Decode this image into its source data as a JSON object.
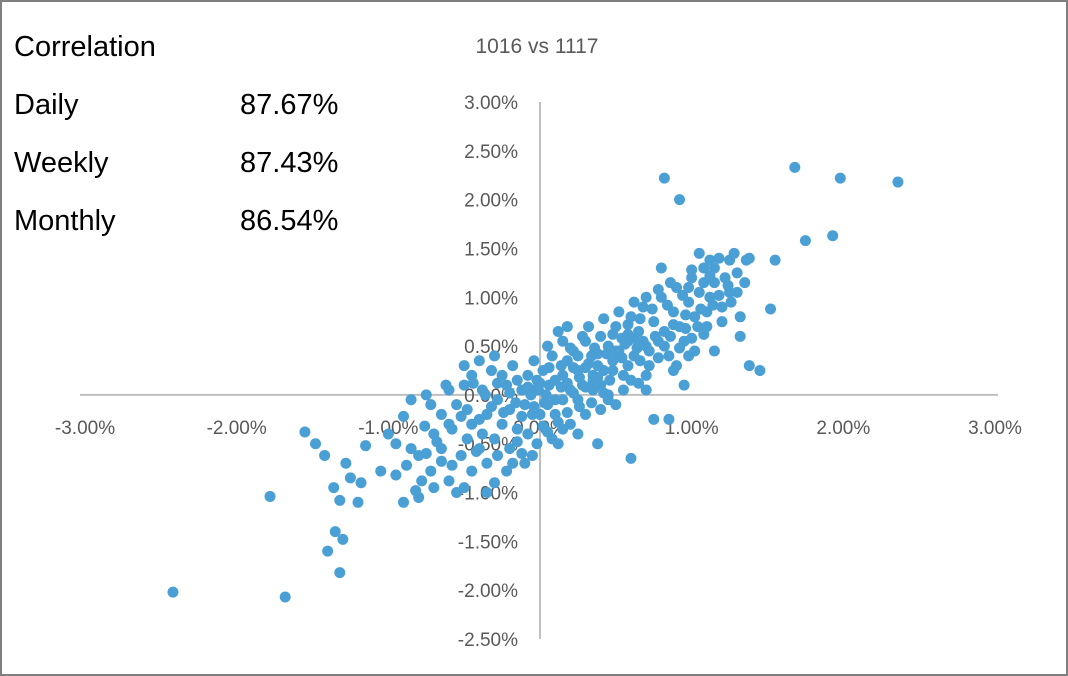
{
  "stats": {
    "heading": "Correlation",
    "rows": [
      {
        "label": "Daily",
        "value": "87.67%"
      },
      {
        "label": "Weekly",
        "value": "87.43%"
      },
      {
        "label": "Monthly",
        "value": "86.54%"
      }
    ]
  },
  "chart_data": {
    "type": "scatter",
    "title": "1016 vs 1117",
    "xlabel": "",
    "ylabel": "",
    "xlim": [
      -3.0,
      3.0
    ],
    "ylim": [
      -2.5,
      3.0
    ],
    "x_ticks": [
      "-3.00%",
      "-2.00%",
      "-1.00%",
      "0.00%",
      "1.00%",
      "2.00%",
      "3.00%"
    ],
    "y_ticks": [
      "3.00%",
      "2.50%",
      "2.00%",
      "1.50%",
      "1.00%",
      "0.50%",
      "0.00%",
      "-0.50%",
      "-1.00%",
      "-1.50%",
      "-2.00%",
      "-2.50%"
    ],
    "grid": false,
    "legend": "none",
    "marker_color": "#4a9fd5",
    "axis_color": "#bfbfbf",
    "points": [
      [
        -2.42,
        -2.02
      ],
      [
        -1.68,
        -2.07
      ],
      [
        -1.32,
        -1.82
      ],
      [
        -1.78,
        -1.04
      ],
      [
        -1.15,
        -0.52
      ],
      [
        -1.0,
        -0.4
      ],
      [
        -0.82,
        -0.98
      ],
      [
        -0.7,
        -0.95
      ],
      [
        -1.55,
        -0.38
      ],
      [
        -1.35,
        -1.4
      ],
      [
        -1.4,
        -1.6
      ],
      [
        -1.3,
        -1.48
      ],
      [
        -1.32,
        -1.08
      ],
      [
        -1.2,
        -1.1
      ],
      [
        -1.25,
        -0.85
      ],
      [
        -1.36,
        -0.95
      ],
      [
        -1.28,
        -0.7
      ],
      [
        -1.18,
        -0.9
      ],
      [
        -1.05,
        -0.78
      ],
      [
        -0.95,
        -0.82
      ],
      [
        -0.88,
        -0.72
      ],
      [
        -0.9,
        -1.1
      ],
      [
        -0.8,
        -1.05
      ],
      [
        -0.75,
        -0.6
      ],
      [
        -0.65,
        -0.55
      ],
      [
        -0.6,
        -0.88
      ],
      [
        -0.55,
        -1.0
      ],
      [
        -0.5,
        -0.95
      ],
      [
        -0.45,
        -0.78
      ],
      [
        -0.35,
        -1.0
      ],
      [
        -0.3,
        -0.9
      ],
      [
        -0.85,
        -0.55
      ],
      [
        -0.7,
        -0.4
      ],
      [
        -0.6,
        -0.3
      ],
      [
        -0.8,
        -0.62
      ],
      [
        -1.48,
        -0.5
      ],
      [
        -1.42,
        -0.62
      ],
      [
        -0.95,
        -0.5
      ],
      [
        -0.72,
        -0.78
      ],
      [
        -0.78,
        -0.88
      ],
      [
        -0.65,
        -0.68
      ],
      [
        -0.52,
        -0.62
      ],
      [
        -0.48,
        -0.45
      ],
      [
        -0.4,
        -0.55
      ],
      [
        -0.38,
        -0.4
      ],
      [
        -0.45,
        -0.3
      ],
      [
        -0.35,
        -0.2
      ],
      [
        -0.3,
        -0.45
      ],
      [
        -0.25,
        -0.3
      ],
      [
        -0.2,
        -0.55
      ],
      [
        -0.15,
        -0.35
      ],
      [
        -0.12,
        -0.6
      ],
      [
        -0.08,
        -0.4
      ],
      [
        -0.05,
        -0.2
      ],
      [
        -0.02,
        -0.5
      ],
      [
        0.02,
        -0.32
      ],
      [
        0.05,
        -0.1
      ],
      [
        0.08,
        -0.45
      ],
      [
        0.12,
        -0.28
      ],
      [
        0.15,
        -0.05
      ],
      [
        -0.55,
        -0.1
      ],
      [
        -0.5,
        0.1
      ],
      [
        -0.45,
        0.2
      ],
      [
        -0.38,
        0.05
      ],
      [
        -0.32,
        0.25
      ],
      [
        -0.28,
        -0.05
      ],
      [
        -0.22,
        0.1
      ],
      [
        -0.18,
        0.3
      ],
      [
        -0.12,
        0.05
      ],
      [
        -0.08,
        0.2
      ],
      [
        -0.04,
        0.35
      ],
      [
        0.0,
        0.12
      ],
      [
        0.04,
        0.0
      ],
      [
        0.06,
        0.28
      ],
      [
        0.1,
        0.15
      ],
      [
        -0.6,
        0.05
      ],
      [
        -0.4,
        0.35
      ],
      [
        -0.5,
        0.3
      ],
      [
        -0.3,
        0.4
      ],
      [
        -0.25,
        0.2
      ],
      [
        -0.2,
        -0.15
      ],
      [
        -0.15,
        0.15
      ],
      [
        -0.1,
        -0.1
      ],
      [
        -0.06,
        0.0
      ],
      [
        0.0,
        -0.2
      ],
      [
        -0.85,
        -0.05
      ],
      [
        -0.75,
        0.0
      ],
      [
        -0.65,
        -0.2
      ],
      [
        -0.58,
        -0.35
      ],
      [
        -0.48,
        -0.15
      ],
      [
        -0.42,
        -0.58
      ],
      [
        -0.35,
        -0.7
      ],
      [
        -0.28,
        -0.62
      ],
      [
        -0.22,
        -0.78
      ],
      [
        -0.18,
        -0.7
      ],
      [
        0.15,
        0.2
      ],
      [
        0.18,
        0.35
      ],
      [
        0.2,
        0.05
      ],
      [
        0.22,
        0.45
      ],
      [
        0.25,
        0.25
      ],
      [
        0.28,
        0.1
      ],
      [
        0.3,
        0.55
      ],
      [
        0.32,
        0.32
      ],
      [
        0.35,
        0.15
      ],
      [
        0.38,
        0.42
      ],
      [
        0.4,
        0.6
      ],
      [
        0.42,
        0.25
      ],
      [
        0.45,
        0.5
      ],
      [
        0.48,
        0.35
      ],
      [
        0.5,
        0.7
      ],
      [
        0.52,
        0.45
      ],
      [
        0.55,
        0.2
      ],
      [
        0.58,
        0.55
      ],
      [
        0.6,
        0.8
      ],
      [
        0.62,
        0.4
      ],
      [
        0.65,
        0.65
      ],
      [
        0.68,
        0.9
      ],
      [
        0.7,
        0.5
      ],
      [
        0.72,
        0.3
      ],
      [
        0.75,
        0.75
      ],
      [
        0.78,
        0.55
      ],
      [
        0.8,
        1.0
      ],
      [
        0.82,
        0.65
      ],
      [
        0.85,
        0.4
      ],
      [
        0.88,
        0.85
      ],
      [
        0.9,
        1.1
      ],
      [
        0.92,
        0.7
      ],
      [
        0.95,
        0.55
      ],
      [
        0.98,
        0.95
      ],
      [
        1.0,
        1.2
      ],
      [
        1.02,
        0.8
      ],
      [
        1.05,
        1.05
      ],
      [
        1.08,
        1.3
      ],
      [
        1.1,
        0.85
      ],
      [
        1.12,
        1.0
      ],
      [
        1.15,
        1.15
      ],
      [
        1.18,
        1.4
      ],
      [
        1.2,
        0.9
      ],
      [
        1.22,
        1.2
      ],
      [
        1.25,
        1.05
      ],
      [
        1.28,
        1.45
      ],
      [
        1.3,
        1.25
      ],
      [
        1.32,
        0.6
      ],
      [
        1.35,
        1.15
      ],
      [
        1.38,
        1.4
      ],
      [
        1.05,
        1.45
      ],
      [
        1.12,
        1.38
      ],
      [
        0.8,
        1.3
      ],
      [
        0.88,
        0.25
      ],
      [
        0.95,
        0.1
      ],
      [
        1.1,
        0.7
      ],
      [
        1.15,
        0.45
      ],
      [
        1.2,
        0.75
      ],
      [
        0.7,
        0.2
      ],
      [
        0.6,
        0.15
      ],
      [
        0.75,
        -0.25
      ],
      [
        0.55,
        0.05
      ],
      [
        0.5,
        -0.1
      ],
      [
        0.45,
        0.0
      ],
      [
        0.4,
        -0.15
      ],
      [
        0.35,
        0.05
      ],
      [
        0.3,
        -0.2
      ],
      [
        0.25,
        -0.05
      ],
      [
        0.2,
        -0.3
      ],
      [
        0.15,
        -0.35
      ],
      [
        0.1,
        -0.2
      ],
      [
        0.45,
        -0.05
      ],
      [
        0.4,
        0.1
      ],
      [
        0.35,
        0.2
      ],
      [
        0.3,
        0.28
      ],
      [
        0.25,
        0.4
      ],
      [
        0.2,
        0.48
      ],
      [
        0.15,
        0.55
      ],
      [
        0.12,
        0.65
      ],
      [
        0.18,
        0.7
      ],
      [
        0.08,
        0.4
      ],
      [
        0.05,
        0.5
      ],
      [
        0.02,
        0.25
      ],
      [
        -0.02,
        0.15
      ],
      [
        -0.05,
        0.05
      ],
      [
        0.28,
        0.6
      ],
      [
        0.32,
        0.7
      ],
      [
        0.36,
        0.48
      ],
      [
        0.42,
        0.78
      ],
      [
        0.48,
        0.62
      ],
      [
        0.52,
        0.85
      ],
      [
        0.58,
        0.72
      ],
      [
        0.62,
        0.95
      ],
      [
        0.66,
        0.78
      ],
      [
        0.7,
        1.0
      ],
      [
        0.74,
        0.88
      ],
      [
        0.78,
        1.08
      ],
      [
        0.84,
        0.92
      ],
      [
        0.86,
        1.15
      ],
      [
        0.94,
        1.02
      ],
      [
        0.66,
        0.35
      ],
      [
        0.72,
        0.45
      ],
      [
        0.78,
        0.38
      ],
      [
        0.82,
        0.5
      ],
      [
        0.86,
        0.6
      ],
      [
        0.92,
        0.48
      ],
      [
        0.96,
        0.68
      ],
      [
        1.0,
        0.58
      ],
      [
        1.04,
        0.7
      ],
      [
        1.08,
        0.62
      ],
      [
        0.58,
        0.3
      ],
      [
        0.54,
        0.38
      ],
      [
        0.48,
        0.25
      ],
      [
        0.44,
        0.42
      ],
      [
        0.38,
        0.3
      ],
      [
        0.34,
        0.4
      ],
      [
        0.26,
        0.18
      ],
      [
        0.22,
        0.28
      ],
      [
        0.18,
        0.12
      ],
      [
        0.14,
        0.3
      ],
      [
        0.9,
        0.3
      ],
      [
        0.98,
        0.4
      ],
      [
        1.02,
        0.45
      ],
      [
        1.06,
        0.88
      ],
      [
        1.14,
        0.92
      ],
      [
        1.18,
        1.02
      ],
      [
        1.24,
        1.12
      ],
      [
        1.26,
        0.95
      ],
      [
        1.3,
        1.05
      ],
      [
        1.36,
        1.38
      ],
      [
        0.82,
        2.22
      ],
      [
        0.92,
        2.0
      ],
      [
        1.68,
        2.33
      ],
      [
        1.98,
        2.22
      ],
      [
        2.36,
        2.18
      ],
      [
        1.75,
        1.58
      ],
      [
        1.93,
        1.63
      ],
      [
        1.55,
        1.38
      ],
      [
        1.52,
        0.88
      ],
      [
        1.45,
        0.25
      ],
      [
        1.38,
        0.3
      ],
      [
        1.32,
        0.8
      ],
      [
        1.25,
        1.38
      ],
      [
        1.15,
        1.3
      ],
      [
        1.0,
        1.28
      ],
      [
        0.85,
        -0.25
      ],
      [
        0.6,
        -0.65
      ],
      [
        0.38,
        -0.5
      ],
      [
        0.25,
        -0.4
      ],
      [
        0.12,
        -0.5
      ],
      [
        0.05,
        -0.38
      ],
      [
        -0.05,
        -0.62
      ],
      [
        -0.1,
        -0.7
      ],
      [
        -0.15,
        -0.48
      ],
      [
        -0.58,
        -0.72
      ],
      [
        0.7,
        0.05
      ],
      [
        0.65,
        0.12
      ],
      [
        0.62,
        0.58
      ],
      [
        0.56,
        0.52
      ],
      [
        0.5,
        0.45
      ],
      [
        0.46,
        0.15
      ],
      [
        0.42,
        0.02
      ],
      [
        0.38,
        0.18
      ],
      [
        0.34,
        -0.08
      ],
      [
        0.3,
        0.08
      ],
      [
        0.26,
        -0.12
      ],
      [
        0.22,
        0.02
      ],
      [
        0.18,
        -0.18
      ],
      [
        0.14,
        0.08
      ],
      [
        0.1,
        -0.05
      ],
      [
        0.06,
        0.1
      ],
      [
        0.03,
        -0.08
      ],
      [
        -0.01,
        0.05
      ],
      [
        -0.04,
        -0.12
      ],
      [
        -0.08,
        0.08
      ],
      [
        -0.12,
        -0.22
      ],
      [
        -0.16,
        -0.08
      ],
      [
        -0.2,
        0.02
      ],
      [
        -0.24,
        -0.18
      ],
      [
        -0.28,
        0.12
      ],
      [
        -0.32,
        -0.12
      ],
      [
        -0.36,
        0.0
      ],
      [
        -0.4,
        -0.25
      ],
      [
        -0.44,
        0.12
      ],
      [
        -0.52,
        -0.22
      ],
      [
        -0.62,
        0.1
      ],
      [
        -0.68,
        -0.48
      ],
      [
        -0.72,
        -0.1
      ],
      [
        -0.76,
        -0.32
      ],
      [
        -0.9,
        -0.22
      ],
      [
        0.98,
        1.1
      ],
      [
        1.08,
        1.15
      ],
      [
        1.12,
        1.22
      ],
      [
        0.96,
        0.82
      ],
      [
        0.88,
        0.72
      ],
      [
        0.76,
        0.6
      ],
      [
        0.68,
        0.55
      ],
      [
        0.64,
        0.48
      ],
      [
        0.58,
        0.62
      ],
      [
        0.54,
        0.58
      ]
    ]
  }
}
